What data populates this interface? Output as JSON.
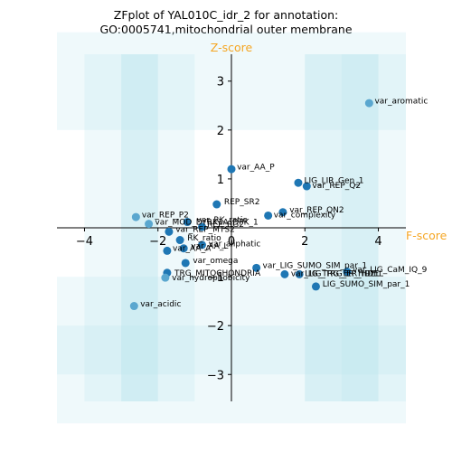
{
  "chart_data": {
    "type": "scatter",
    "title_line1": "ZFplot of YAL010C_idr_2 for annotation:",
    "title_line2": "GO:0005741,mitochondrial outer membrane",
    "xlabel": "F-score",
    "ylabel": "Z-score",
    "xlim": [
      -4.75,
      4.75
    ],
    "ylim": [
      -3.55,
      3.55
    ],
    "xticks": [
      -4,
      -2,
      0,
      2,
      4
    ],
    "yticks": [
      -3,
      -2,
      -1,
      1,
      2,
      3
    ],
    "grid": false,
    "colors": {
      "dark": "#1f77b4",
      "light": "#5aa7cf",
      "band": "#b8e2ec"
    },
    "points": [
      {
        "name": "var_aromatic",
        "x": 3.75,
        "y": 2.55,
        "shade": "light"
      },
      {
        "name": "var_AA_P",
        "x": 0.0,
        "y": 1.2,
        "shade": "dark"
      },
      {
        "name": "LIG_LIR_Gen_1",
        "x": 1.82,
        "y": 0.92,
        "shade": "dark"
      },
      {
        "name": "var_REP_Q2",
        "x": 2.05,
        "y": 0.85,
        "shade": "dark"
      },
      {
        "name": "REP_SR2",
        "x": -0.4,
        "y": 0.48,
        "shade": "dark"
      },
      {
        "name": "var_REP_QN2",
        "x": 1.4,
        "y": 0.32,
        "shade": "dark"
      },
      {
        "name": "var_complexity",
        "x": 1.0,
        "y": 0.25,
        "shade": "dark"
      },
      {
        "name": "var_REP_P2",
        "x": -2.6,
        "y": 0.22,
        "shade": "light"
      },
      {
        "name": "var_MOD_DYRK1A_DPK_1",
        "x": -2.25,
        "y": 0.08,
        "shade": "light"
      },
      {
        "name": "var_RK_ratio",
        "x": -1.2,
        "y": 0.12,
        "shade": "dark"
      },
      {
        "name": "REP_RG2",
        "x": -0.8,
        "y": 0.02,
        "shade": "dark"
      },
      {
        "name": "var_REP_MTS2",
        "x": -1.7,
        "y": -0.08,
        "shade": "dark"
      },
      {
        "name": "RK_ratio",
        "x": -1.4,
        "y": -0.25,
        "shade": "dark"
      },
      {
        "name": "var_aliphatic",
        "x": -0.8,
        "y": -0.35,
        "shade": "dark"
      },
      {
        "name": "var_AA_L",
        "x": -1.3,
        "y": -0.42,
        "shade": "dark"
      },
      {
        "name": "var_AA_A",
        "x": -1.75,
        "y": -0.47,
        "shade": "dark"
      },
      {
        "name": "var_omega",
        "x": -1.25,
        "y": -0.72,
        "shade": "dark"
      },
      {
        "name": "var_LIG_SUMO_SIM_par_1",
        "x": 0.68,
        "y": -0.82,
        "shade": "dark"
      },
      {
        "name": "TRG_MITOCHONDRIA",
        "x": -1.75,
        "y": -0.92,
        "shade": "dark"
      },
      {
        "name": "var_hydrophobicity",
        "x": -1.8,
        "y": -1.02,
        "shade": "light"
      },
      {
        "name": "var_LIG_TRG_ER_HDEL",
        "x": 1.45,
        "y": -0.95,
        "shade": "dark"
      },
      {
        "name": "LIG_TRG_ER_HDEL",
        "x": 1.85,
        "y": -0.95,
        "shade": "dark"
      },
      {
        "name": "var_LIG_CaM_IQ_9",
        "x": 3.15,
        "y": -0.9,
        "shade": "dark"
      },
      {
        "name": "LIG_SUMO_SIM_par_1",
        "x": 2.3,
        "y": -1.2,
        "shade": "dark"
      },
      {
        "name": "var_acidic",
        "x": -2.65,
        "y": -1.6,
        "shade": "light"
      }
    ],
    "labels": [
      {
        "text": "var_aromatic",
        "x": 3.9,
        "y": 2.6
      },
      {
        "text": "var_AA_P",
        "x": 0.15,
        "y": 1.25
      },
      {
        "text": "LIG_LIR_Gen_1",
        "x": 1.98,
        "y": 0.97
      },
      {
        "text": "var_REP_Q2",
        "x": 2.2,
        "y": 0.87
      },
      {
        "text": "REP_SR2",
        "x": -0.2,
        "y": 0.54
      },
      {
        "text": "var_REP_QN2",
        "x": 1.58,
        "y": 0.37
      },
      {
        "text": "var_complexity",
        "x": 1.15,
        "y": 0.27
      },
      {
        "text": "var_REP_P2",
        "x": -2.44,
        "y": 0.27
      },
      {
        "text": "var_MOD_DYRK1A_DPK_1",
        "x": -2.08,
        "y": 0.12
      },
      {
        "text": "var_RK_ratio",
        "x": -0.95,
        "y": 0.17
      },
      {
        "text": "REP_RG2",
        "x": -0.66,
        "y": 0.07
      },
      {
        "text": "var_REP_MTS2",
        "x": -1.52,
        "y": -0.03
      },
      {
        "text": "RK_ratio",
        "x": -1.2,
        "y": -0.2
      },
      {
        "text": "var_aliphatic",
        "x": -0.62,
        "y": -0.32
      },
      {
        "text": "var_AA_L",
        "x": -1.1,
        "y": -0.37
      },
      {
        "text": "var_AA_A",
        "x": -1.6,
        "y": -0.42
      },
      {
        "text": "var_omega",
        "x": -1.05,
        "y": -0.67
      },
      {
        "text": "var_LIG_SUMO_SIM_par_1",
        "x": 0.85,
        "y": -0.77
      },
      {
        "text": "TRG_MITOCHONDRIA",
        "x": -1.55,
        "y": -0.92
      },
      {
        "text": "var_hydrophobicity",
        "x": -1.62,
        "y": -1.02
      },
      {
        "text": "var_LIG_TRG_ER_HDEL",
        "x": 1.62,
        "y": -0.93
      },
      {
        "text": "LIG_TRG_ER_HDEL",
        "x": 2.0,
        "y": -0.93
      },
      {
        "text": "var_LIG_CaM_IQ_9",
        "x": 3.3,
        "y": -0.85
      },
      {
        "text": "LIG_SUMO_SIM_par_1",
        "x": 2.48,
        "y": -1.15
      },
      {
        "text": "var_acidic",
        "x": -2.48,
        "y": -1.55
      }
    ],
    "bands": {
      "vertical": [
        [
          -4,
          -2
        ],
        [
          -3,
          -2
        ],
        [
          -3,
          -1
        ],
        [
          2,
          4
        ],
        [
          3,
          4
        ],
        [
          2,
          5
        ]
      ],
      "horizontal": [
        [
          2,
          4
        ],
        [
          -4,
          -2
        ],
        [
          -3,
          -1
        ]
      ]
    }
  }
}
